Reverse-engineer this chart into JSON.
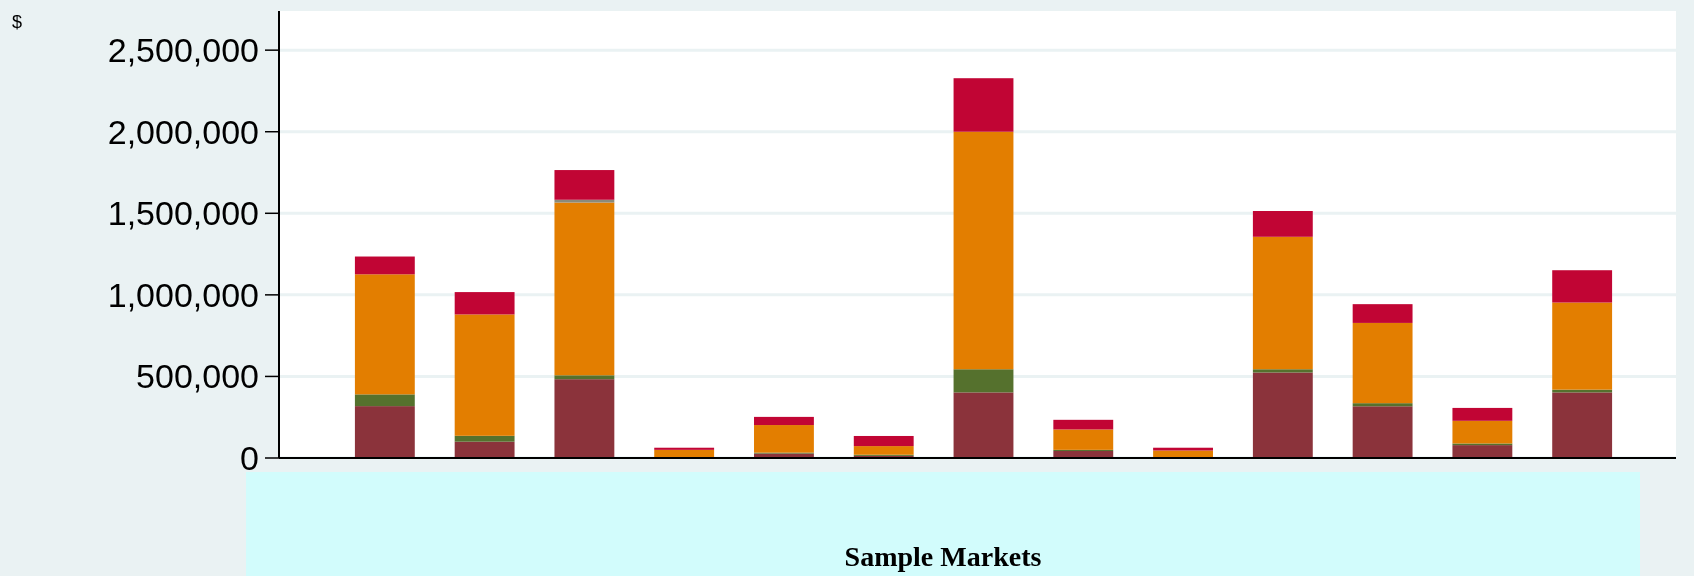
{
  "chart_data": {
    "type": "bar",
    "stacked": true,
    "ylabel": "$",
    "xlabel": "Sample Markets",
    "categories": [
      null,
      null,
      null,
      null,
      null,
      null,
      null,
      null,
      null,
      null,
      null,
      null,
      null
    ],
    "series": [
      {
        "color": "#8b333b",
        "values": [
          318000,
          100000,
          483000,
          0,
          27000,
          13000,
          402000,
          43000,
          0,
          524000,
          317000,
          79000,
          402000
        ]
      },
      {
        "color": "#55712d",
        "values": [
          72000,
          36000,
          24000,
          0,
          6000,
          7000,
          142000,
          7000,
          0,
          20000,
          19000,
          10000,
          17000
        ]
      },
      {
        "color": "#e37e00",
        "values": [
          736000,
          744000,
          1059000,
          50000,
          169000,
          53000,
          1456000,
          125000,
          46000,
          812000,
          492000,
          139000,
          534000
        ]
      },
      {
        "color": "#8a8a7a",
        "values": [
          0,
          0,
          17000,
          0,
          0,
          0,
          0,
          0,
          0,
          0,
          0,
          0,
          0
        ]
      },
      {
        "color": "#c10534",
        "values": [
          109000,
          137000,
          182000,
          13000,
          50000,
          62000,
          328000,
          59000,
          17000,
          158000,
          115000,
          79000,
          198000
        ]
      }
    ],
    "ylim": [
      0,
      2740000
    ],
    "yticks": [
      {
        "value": 0,
        "label": "0"
      },
      {
        "value": 500000,
        "label": "500,000"
      },
      {
        "value": 1000000,
        "label": "1,000,000"
      },
      {
        "value": 1500000,
        "label": "1,500,000"
      },
      {
        "value": 2000000,
        "label": "2,000,000"
      },
      {
        "value": 2500000,
        "label": "2,500,000"
      }
    ],
    "grid": "y"
  }
}
